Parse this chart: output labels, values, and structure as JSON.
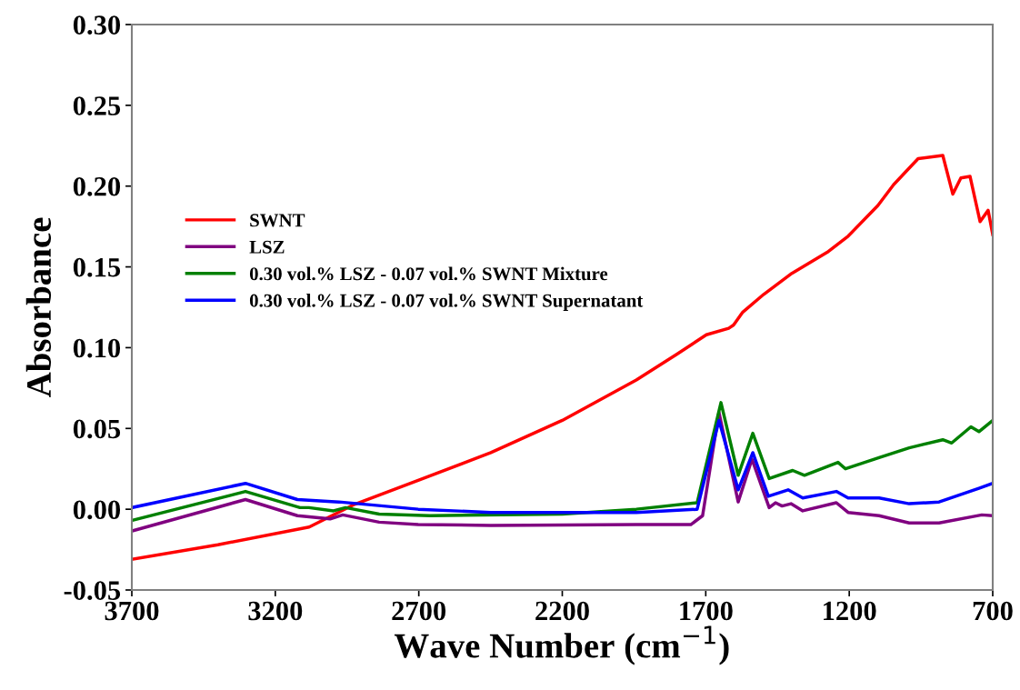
{
  "chart_data": {
    "type": "line",
    "xlabel": "Wave Number (cm$^{−1}$)",
    "ylabel": "Absorbance",
    "xlim": [
      3700,
      700
    ],
    "ylim": [
      -0.05,
      0.3
    ],
    "xticks": [
      3700,
      3200,
      2700,
      2200,
      1700,
      1200,
      700
    ],
    "yticks": [
      -0.05,
      {
        "value": 0,
        "label": "0.00"
      },
      0.05,
      {
        "value": 0.1,
        "label": "0.10"
      },
      0.15,
      {
        "value": 0.2,
        "label": "0.20"
      },
      0.25,
      {
        "value": 0.3,
        "label": "0.30"
      }
    ],
    "grid": false,
    "legend": "center left",
    "marker": "none",
    "line_style": "solid",
    "series": [
      {
        "name": "SWNT",
        "color": "#ff0000",
        "x": [
          3700,
          3400,
          3082,
          2924,
          2700,
          2449,
          2200,
          1942,
          1800,
          1698,
          1620,
          1603,
          1571,
          1498,
          1400,
          1277,
          1204,
          1100,
          1045,
          960,
          874,
          839,
          811,
          779,
          744,
          716,
          700
        ],
        "values": [
          -0.031,
          -0.022,
          -0.011,
          0.003,
          0.018,
          0.035,
          0.055,
          0.08,
          0.096,
          0.108,
          0.112,
          0.114,
          0.122,
          0.133,
          0.146,
          0.159,
          0.169,
          0.188,
          0.201,
          0.217,
          0.219,
          0.195,
          0.205,
          0.206,
          0.178,
          0.185,
          0.17
        ]
      },
      {
        "name": "LSZ",
        "color": "#800080",
        "x": [
          3700,
          3304,
          3123,
          3009,
          2965,
          2838,
          2702,
          2449,
          1942,
          1752,
          1711,
          1654,
          1587,
          1539,
          1479,
          1457,
          1434,
          1403,
          1362,
          1245,
          1204,
          1096,
          991,
          887,
          738,
          700
        ],
        "values": [
          -0.0135,
          0.006,
          -0.004,
          -0.006,
          -0.0035,
          -0.008,
          -0.0095,
          -0.01,
          -0.0095,
          -0.0095,
          -0.004,
          0.06,
          0.0045,
          0.031,
          0.001,
          0.004,
          0.002,
          0.0034,
          -0.001,
          0.004,
          -0.002,
          -0.004,
          -0.0085,
          -0.0085,
          -0.0035,
          -0.004
        ]
      },
      {
        "name": "0.30 vol.% LSZ - 0.07 vol.% SWNT Mixture",
        "color": "#008000",
        "x": [
          3700,
          3304,
          3114,
          3083,
          2997,
          2955,
          2838,
          2661,
          2200,
          1942,
          1730,
          1647,
          1587,
          1536,
          1479,
          1397,
          1356,
          1239,
          1213,
          1096,
          991,
          874,
          843,
          776,
          748,
          700
        ],
        "values": [
          -0.007,
          0.011,
          0.001,
          0.001,
          -0.001,
          0.001,
          -0.003,
          -0.004,
          -0.003,
          0.0,
          0.004,
          0.066,
          0.021,
          0.047,
          0.019,
          0.024,
          0.021,
          0.029,
          0.025,
          0.032,
          0.038,
          0.043,
          0.041,
          0.051,
          0.048,
          0.055
        ]
      },
      {
        "name": "0.30 vol.% LSZ - 0.07 vol.% SWNT Supernatant",
        "color": "#0000ff",
        "x": [
          3700,
          3304,
          3123,
          2978,
          2702,
          2449,
          1942,
          1730,
          1654,
          1587,
          1536,
          1482,
          1413,
          1362,
          1245,
          1204,
          1096,
          991,
          887,
          748,
          700
        ],
        "values": [
          0.001,
          0.016,
          0.006,
          0.0045,
          0.0,
          -0.002,
          -0.002,
          0.0,
          0.055,
          0.012,
          0.035,
          0.008,
          0.012,
          0.007,
          0.011,
          0.007,
          0.007,
          0.0034,
          0.0045,
          0.013,
          0.016
        ]
      }
    ]
  }
}
